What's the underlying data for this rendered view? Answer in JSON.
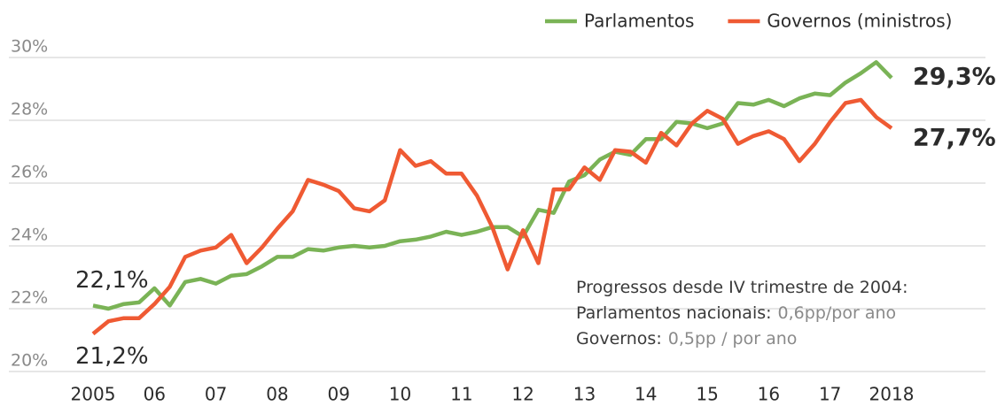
{
  "chart_data": {
    "type": "line",
    "x": [
      2005,
      2005.25,
      2005.5,
      2005.75,
      2006,
      2006.25,
      2006.5,
      2006.75,
      2007,
      2007.25,
      2007.5,
      2007.75,
      2008,
      2008.25,
      2008.5,
      2008.75,
      2009,
      2009.25,
      2009.5,
      2009.75,
      2010,
      2010.25,
      2010.5,
      2010.75,
      2011,
      2011.25,
      2011.5,
      2011.75,
      2012,
      2012.25,
      2012.5,
      2012.75,
      2013,
      2013.25,
      2013.5,
      2013.75,
      2014,
      2014.25,
      2014.5,
      2014.75,
      2015,
      2015.25,
      2015.5,
      2015.75,
      2016,
      2016.25,
      2016.5,
      2016.75,
      2017,
      2017.25,
      2017.5,
      2017.75,
      2018
    ],
    "series": [
      {
        "name": "Parlamentos",
        "color": "#7ab356",
        "values": [
          22.1,
          22.0,
          22.15,
          22.2,
          22.65,
          22.1,
          22.85,
          22.95,
          22.8,
          23.05,
          23.1,
          23.35,
          23.65,
          23.65,
          23.9,
          23.85,
          23.95,
          24.0,
          23.95,
          24.0,
          24.15,
          24.2,
          24.3,
          24.45,
          24.35,
          24.45,
          24.6,
          24.6,
          24.3,
          25.15,
          25.05,
          26.05,
          26.25,
          26.75,
          27.0,
          26.9,
          27.4,
          27.4,
          27.95,
          27.9,
          27.75,
          27.9,
          28.55,
          28.5,
          28.65,
          28.45,
          28.7,
          28.85,
          28.8,
          29.2,
          29.5,
          29.85,
          29.35
        ]
      },
      {
        "name": "Governos (ministros)",
        "color": "#ef5a33",
        "values": [
          21.2,
          21.6,
          21.7,
          21.7,
          22.15,
          22.7,
          23.65,
          23.85,
          23.95,
          24.35,
          23.45,
          23.95,
          24.55,
          25.1,
          26.1,
          25.95,
          25.75,
          25.2,
          25.1,
          25.45,
          27.05,
          26.55,
          26.7,
          26.3,
          26.3,
          25.6,
          24.6,
          23.25,
          24.5,
          23.45,
          25.8,
          25.8,
          26.5,
          26.1,
          27.05,
          27.0,
          26.65,
          27.6,
          27.2,
          27.9,
          28.3,
          28.05,
          27.25,
          27.5,
          27.65,
          27.4,
          26.7,
          27.25,
          27.95,
          28.55,
          28.65,
          28.1,
          27.75
        ]
      }
    ],
    "xlim": [
      2005,
      2018
    ],
    "xticks": [
      {
        "value": 2005,
        "label": "2005"
      },
      {
        "value": 2006,
        "label": "06"
      },
      {
        "value": 2007,
        "label": "07"
      },
      {
        "value": 2008,
        "label": "08"
      },
      {
        "value": 2009,
        "label": "09"
      },
      {
        "value": 2010,
        "label": "10"
      },
      {
        "value": 2011,
        "label": "11"
      },
      {
        "value": 2012,
        "label": "12"
      },
      {
        "value": 2013,
        "label": "13"
      },
      {
        "value": 2014,
        "label": "14"
      },
      {
        "value": 2015,
        "label": "15"
      },
      {
        "value": 2016,
        "label": "16"
      },
      {
        "value": 2017,
        "label": "17"
      },
      {
        "value": 2018,
        "label": "2018"
      }
    ],
    "ylim": [
      20,
      30
    ],
    "yticks": [
      {
        "value": 20,
        "label": "20%"
      },
      {
        "value": 22,
        "label": "22%"
      },
      {
        "value": 24,
        "label": "24%"
      },
      {
        "value": 26,
        "label": "26%"
      },
      {
        "value": 28,
        "label": "28%"
      },
      {
        "value": 30,
        "label": "30%"
      }
    ],
    "grid": true,
    "legend": "top-right",
    "annotations": [
      {
        "text": "22,1%",
        "series": 0,
        "point": 0,
        "value": 22.1
      },
      {
        "text": "21,2%",
        "series": 1,
        "point": 0,
        "value": 21.2
      },
      {
        "text": "29,3%",
        "series": 0,
        "point": 52,
        "value": 29.3
      },
      {
        "text": "27,7%",
        "series": 1,
        "point": 52,
        "value": 27.7
      }
    ],
    "note": [
      {
        "label": "Progressos desde IV trimestre de 2004:"
      },
      {
        "label": "Parlamentos nacionais:",
        "value": "0,6pp/por ano"
      },
      {
        "label": "Governos:",
        "value": "0,5pp / por ano"
      }
    ]
  }
}
